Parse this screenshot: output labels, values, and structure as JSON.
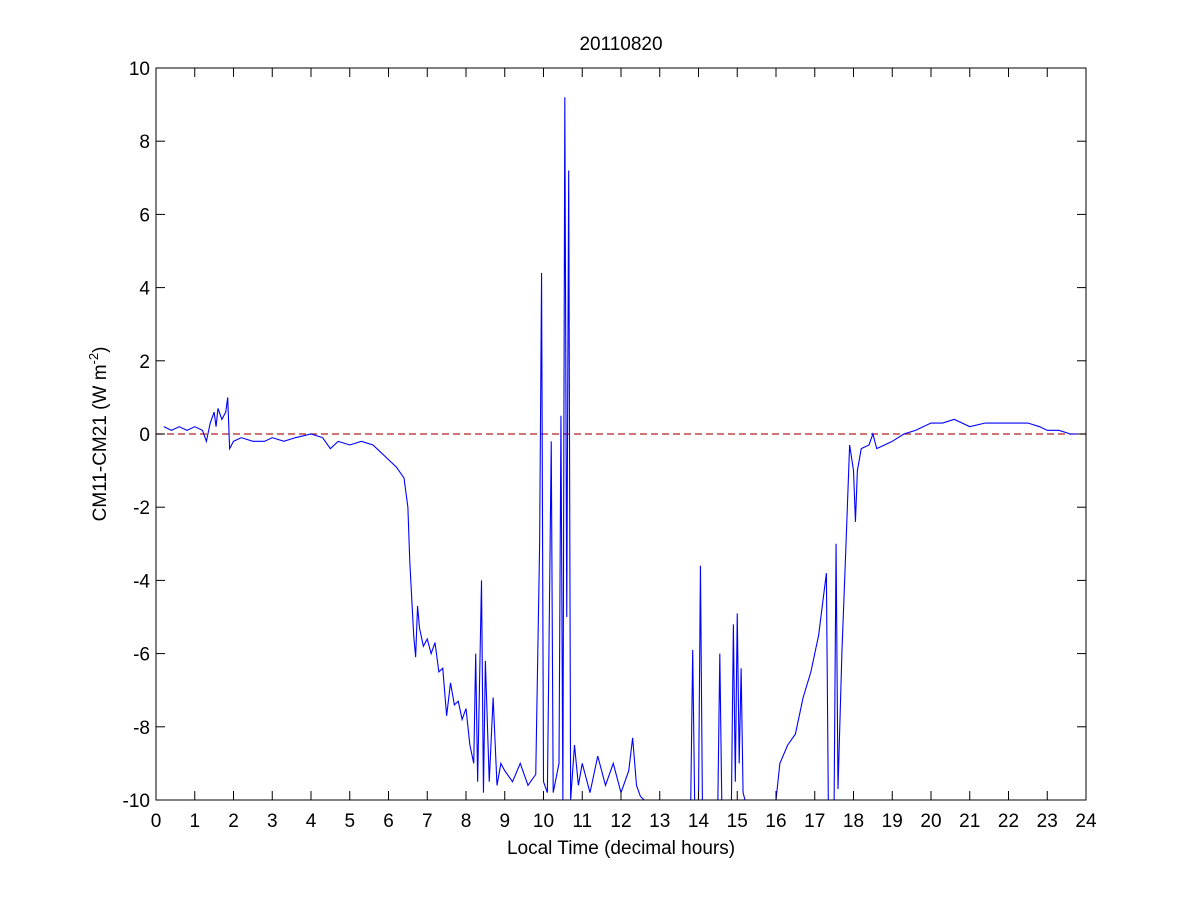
{
  "chart_data": {
    "type": "line",
    "title": "20110820",
    "xlabel": "Local Time (decimal hours)",
    "ylabel": {
      "main": "CM11-CM21 (W m",
      "sup": "-2",
      "end": ")"
    },
    "xlim": [
      0,
      24
    ],
    "xticks": [
      0,
      1,
      2,
      3,
      4,
      5,
      6,
      7,
      8,
      9,
      10,
      11,
      12,
      13,
      14,
      15,
      16,
      17,
      18,
      19,
      20,
      21,
      22,
      23,
      24
    ],
    "ylim": [
      -10,
      10
    ],
    "yticks": [
      -10,
      -8,
      -6,
      -4,
      -2,
      0,
      2,
      4,
      6,
      8,
      10
    ],
    "grid": false,
    "reference_line": {
      "value": 0,
      "color": "#b22222",
      "dashed": true
    },
    "series": [
      {
        "color": "#0000ff",
        "x": [
          0.2,
          0.4,
          0.6,
          0.8,
          1.0,
          1.2,
          1.3,
          1.4,
          1.5,
          1.55,
          1.6,
          1.7,
          1.8,
          1.85,
          1.9,
          2.0,
          2.2,
          2.5,
          2.8,
          3.0,
          3.3,
          3.6,
          4.0,
          4.3,
          4.5,
          4.7,
          5.0,
          5.3,
          5.6,
          5.8,
          6.0,
          6.2,
          6.4,
          6.5,
          6.55,
          6.6,
          6.65,
          6.7,
          6.75,
          6.8,
          6.9,
          7.0,
          7.1,
          7.2,
          7.3,
          7.4,
          7.5,
          7.6,
          7.7,
          7.8,
          7.9,
          8.0,
          8.1,
          8.2,
          8.25,
          8.3,
          8.4,
          8.45,
          8.5,
          8.6,
          8.7,
          8.8,
          8.9,
          9.0,
          9.2,
          9.4,
          9.6,
          9.8,
          9.9,
          9.95,
          10.0,
          10.1,
          10.2,
          10.25,
          10.4,
          10.45,
          10.5,
          10.55,
          10.6,
          10.65,
          10.7,
          10.8,
          10.9,
          11.0,
          11.2,
          11.4,
          11.6,
          11.8,
          12.0,
          12.2,
          12.3,
          12.4,
          12.5,
          12.6,
          12.9,
          13.2,
          13.5,
          13.8,
          13.85,
          13.9,
          14.0,
          14.05,
          14.1,
          14.3,
          14.5,
          14.55,
          14.6,
          14.85,
          14.9,
          14.95,
          15.0,
          15.05,
          15.1,
          15.15,
          15.2,
          15.6,
          16.0,
          16.1,
          16.3,
          16.5,
          16.7,
          16.9,
          17.1,
          17.3,
          17.35,
          17.5,
          17.55,
          17.6,
          17.7,
          17.8,
          17.9,
          18.0,
          18.05,
          18.1,
          18.2,
          18.4,
          18.5,
          18.6,
          18.8,
          19.0,
          19.3,
          19.6,
          20.0,
          20.3,
          20.6,
          21.0,
          21.4,
          21.8,
          22.2,
          22.5,
          22.8,
          23.0,
          23.3,
          23.6,
          24.0
        ],
        "values": [
          0.2,
          0.1,
          0.2,
          0.1,
          0.2,
          0.1,
          -0.2,
          0.3,
          0.6,
          0.2,
          0.7,
          0.4,
          0.6,
          1.0,
          -0.4,
          -0.2,
          -0.1,
          -0.2,
          -0.2,
          -0.1,
          -0.2,
          -0.1,
          0.0,
          -0.1,
          -0.4,
          -0.2,
          -0.3,
          -0.2,
          -0.3,
          -0.5,
          -0.7,
          -0.9,
          -1.2,
          -2.0,
          -3.5,
          -4.5,
          -5.5,
          -6.1,
          -4.7,
          -5.3,
          -5.8,
          -5.6,
          -6.0,
          -5.7,
          -6.5,
          -6.4,
          -7.7,
          -6.8,
          -7.4,
          -7.3,
          -7.8,
          -7.5,
          -8.5,
          -9.0,
          -6.0,
          -9.5,
          -4.0,
          -9.8,
          -6.2,
          -9.5,
          -7.2,
          -9.6,
          -9.0,
          -9.2,
          -9.5,
          -9.0,
          -9.6,
          -9.3,
          -3.0,
          4.4,
          -9.5,
          -9.8,
          -0.2,
          -9.8,
          -9.0,
          0.5,
          -10,
          9.2,
          -5.0,
          7.2,
          -10,
          -8.5,
          -9.6,
          -9.0,
          -9.8,
          -8.8,
          -9.6,
          -9.0,
          -9.8,
          -9.2,
          -8.3,
          -9.6,
          -9.9,
          -10,
          -10,
          -10,
          -10,
          -10,
          -5.9,
          -10,
          -10,
          -3.6,
          -10,
          -10,
          -10,
          -6.0,
          -10,
          -10,
          -5.2,
          -9.5,
          -4.9,
          -9.0,
          -6.4,
          -9.8,
          -10,
          -10,
          -10,
          -9.0,
          -8.5,
          -8.2,
          -7.2,
          -6.5,
          -5.5,
          -3.8,
          -10,
          -10,
          -3.0,
          -9.7,
          -6.0,
          -3.2,
          -0.3,
          -1.0,
          -2.4,
          -1.0,
          -0.4,
          -0.3,
          0.0,
          -0.4,
          -0.3,
          -0.2,
          0.0,
          0.1,
          0.3,
          0.3,
          0.4,
          0.2,
          0.3,
          0.3,
          0.3,
          0.3,
          0.2,
          0.1,
          0.1,
          0.0,
          0.0
        ]
      }
    ]
  }
}
